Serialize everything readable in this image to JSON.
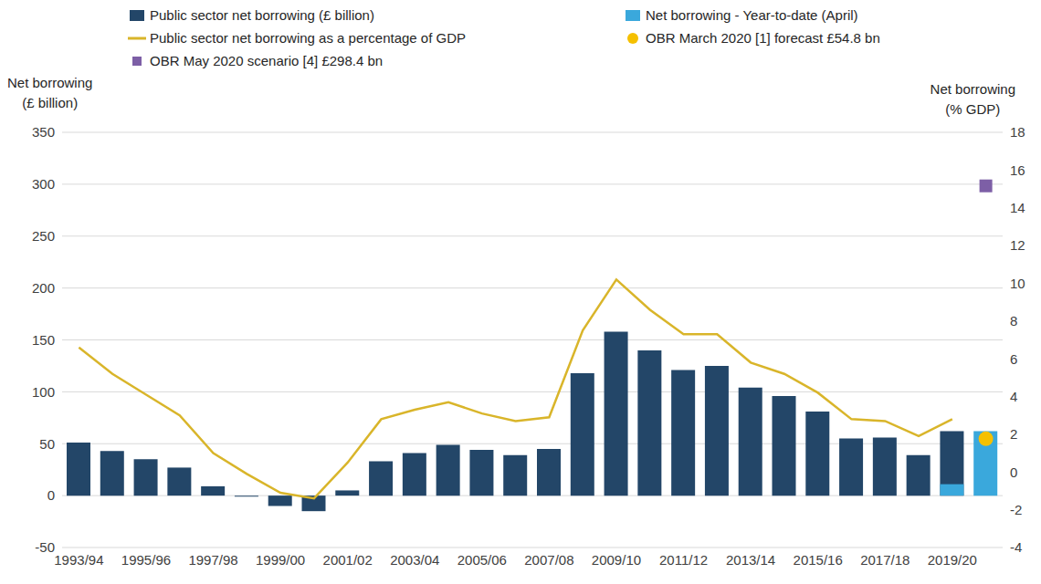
{
  "chart_data": {
    "type": "bar",
    "ylabel": "Net borrowing (£ billion)",
    "y2label": "Net borrowing (% GDP)",
    "categories": [
      "1993/94",
      null,
      "1995/96",
      null,
      "1997/98",
      null,
      "1999/00",
      null,
      "2001/02",
      null,
      "2003/04",
      null,
      "2005/06",
      null,
      "2007/08",
      null,
      "2009/10",
      null,
      "2011/12",
      null,
      "2013/14",
      null,
      "2015/16",
      null,
      "2017/18",
      null,
      "2019/20",
      null
    ],
    "series": [
      {
        "name": "Public sector net borrowing (£ billion)",
        "type": "bar",
        "color": "#234668",
        "values": [
          51,
          43,
          35,
          27,
          9,
          -1,
          -10,
          -15,
          5,
          33,
          41,
          49,
          44,
          39,
          45,
          118,
          158,
          140,
          121,
          125,
          104,
          96,
          81,
          55,
          56,
          39,
          62,
          null
        ]
      },
      {
        "name": "Net borrowing - Year-to-date (April)",
        "type": "bar",
        "color": "#3aa8dc",
        "values": [
          null,
          null,
          null,
          null,
          null,
          null,
          null,
          null,
          null,
          null,
          null,
          null,
          null,
          null,
          null,
          null,
          null,
          null,
          null,
          null,
          null,
          null,
          null,
          null,
          null,
          null,
          11,
          62.1
        ]
      },
      {
        "name": "Public sector net borrowing as a percentage of GDP",
        "type": "line",
        "axis": "y2",
        "color": "#d9b52a",
        "values": [
          6.6,
          5.2,
          4.1,
          3.0,
          1.0,
          -0.1,
          -1.1,
          -1.4,
          0.5,
          2.8,
          3.3,
          3.7,
          3.1,
          2.7,
          2.9,
          7.5,
          10.2,
          8.6,
          7.3,
          7.3,
          5.8,
          5.2,
          4.2,
          2.8,
          2.7,
          1.9,
          2.8,
          null
        ]
      },
      {
        "name": "OBR March 2020 [1] forecast £54.8 bn",
        "type": "scatter",
        "marker": "circle",
        "color": "#f5c000",
        "values": [
          null,
          null,
          null,
          null,
          null,
          null,
          null,
          null,
          null,
          null,
          null,
          null,
          null,
          null,
          null,
          null,
          null,
          null,
          null,
          null,
          null,
          null,
          null,
          null,
          null,
          null,
          null,
          54.8
        ]
      },
      {
        "name": "OBR May 2020 scenario [4] £298.4 bn",
        "type": "scatter",
        "marker": "square",
        "color": "#7d5fa6",
        "values": [
          null,
          null,
          null,
          null,
          null,
          null,
          null,
          null,
          null,
          null,
          null,
          null,
          null,
          null,
          null,
          null,
          null,
          null,
          null,
          null,
          null,
          null,
          null,
          null,
          null,
          null,
          null,
          298.4
        ]
      }
    ],
    "ylim": [
      -50,
      350
    ],
    "yticks": [
      -50,
      0,
      50,
      100,
      150,
      200,
      250,
      300,
      350
    ],
    "y2lim": [
      -4,
      18
    ],
    "y2ticks": [
      -4,
      -2,
      0,
      2,
      4,
      6,
      8,
      10,
      12,
      14,
      16,
      18
    ],
    "grid": true,
    "legend": "top"
  }
}
